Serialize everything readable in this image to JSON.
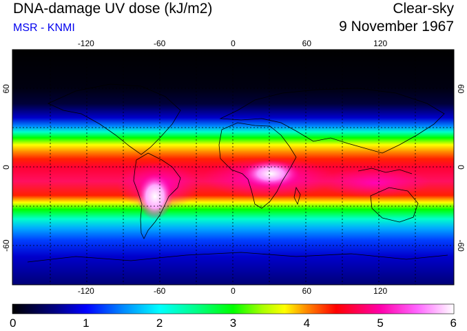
{
  "header": {
    "title": "DNA-damage UV dose (kJ/m2)",
    "source": "MSR - KNMI",
    "mode": "Clear-sky",
    "date": "9 November 1967"
  },
  "map": {
    "lon_ticks": [
      -120,
      -60,
      0,
      60,
      120
    ],
    "lat_ticks": [
      60,
      0,
      -60
    ],
    "lon_range": [
      -180,
      180
    ],
    "lat_range": [
      -90,
      90
    ],
    "grid_spacing_lon": 30,
    "grid_spacing_lat": 30,
    "grid_style": "dotted"
  },
  "colorbar": {
    "ticks": [
      0,
      1,
      2,
      3,
      4,
      5,
      6
    ],
    "range": [
      0,
      6
    ],
    "unit": "kJ/m2",
    "stops": [
      {
        "value": 0.0,
        "color": "#000000"
      },
      {
        "value": 0.6,
        "color": "#000088"
      },
      {
        "value": 1.0,
        "color": "#0000ff"
      },
      {
        "value": 1.5,
        "color": "#0088ff"
      },
      {
        "value": 2.0,
        "color": "#00ffff"
      },
      {
        "value": 2.5,
        "color": "#00ff88"
      },
      {
        "value": 3.0,
        "color": "#00ff00"
      },
      {
        "value": 3.4,
        "color": "#aaff00"
      },
      {
        "value": 3.7,
        "color": "#ffff00"
      },
      {
        "value": 4.0,
        "color": "#ff8800"
      },
      {
        "value": 4.4,
        "color": "#ff0000"
      },
      {
        "value": 5.0,
        "color": "#ff00aa"
      },
      {
        "value": 5.5,
        "color": "#ff66ff"
      },
      {
        "value": 6.0,
        "color": "#ffffff"
      }
    ]
  }
}
